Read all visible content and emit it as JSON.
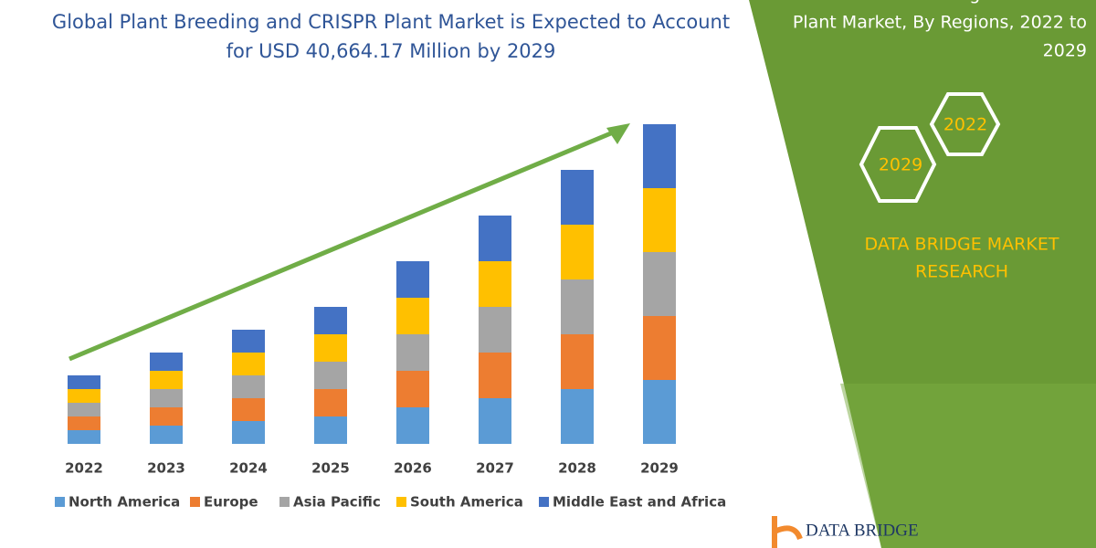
{
  "chart_data": {
    "type": "stacked-bar",
    "title_lines": [
      "Global Plant Breeding and CRISPR Plant Market is Expected to Account",
      "for USD 40,664.17 Million by 2029"
    ],
    "categories": [
      "2022",
      "2023",
      "2024",
      "2025",
      "2026",
      "2027",
      "2028",
      "2029"
    ],
    "series": [
      {
        "name": "North America",
        "color": "#5b9bd5",
        "values": [
          15,
          20,
          25,
          30,
          40,
          50,
          60,
          70
        ]
      },
      {
        "name": "Europe",
        "color": "#ed7d31",
        "values": [
          15,
          20,
          25,
          30,
          40,
          50,
          60,
          70
        ]
      },
      {
        "name": "Asia Pacific",
        "color": "#a5a5a5",
        "values": [
          15,
          20,
          25,
          30,
          40,
          50,
          60,
          70
        ]
      },
      {
        "name": "South America",
        "color": "#ffc000",
        "values": [
          15,
          20,
          25,
          30,
          40,
          50,
          60,
          70
        ]
      },
      {
        "name": "Middle East and Africa",
        "color": "#4472c4",
        "values": [
          15,
          20,
          25,
          30,
          40,
          50,
          60,
          70
        ]
      }
    ]
  },
  "panel": {
    "title_lines": [
      "Global Plant Breeding and CRISPR",
      "Plant Market, By Regions, 2022 to",
      "2029"
    ],
    "hexagons": [
      "2022",
      "2029"
    ],
    "brand_lines": [
      "DATA BRIDGE MARKET",
      "RESEARCH"
    ],
    "logo": "DATA BRIDGE"
  }
}
